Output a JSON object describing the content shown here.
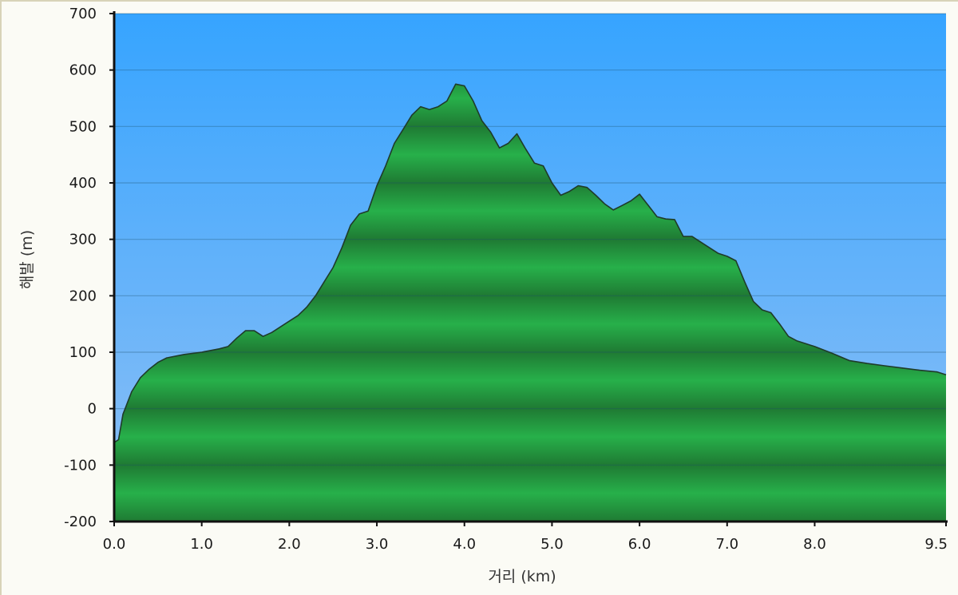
{
  "chart_data": {
    "type": "area",
    "title": "",
    "xlabel": "거리 (km)",
    "ylabel": "해발 (m)",
    "xlim": [
      0,
      9.5
    ],
    "ylim": [
      -200,
      700
    ],
    "grid": true,
    "x_ticks": [
      "0.0",
      "1.0",
      "2.0",
      "3.0",
      "4.0",
      "5.0",
      "6.0",
      "7.0",
      "8.0",
      "9.5"
    ],
    "x_tick_values": [
      0,
      1,
      2,
      3,
      4,
      5,
      6,
      7,
      8,
      9.5
    ],
    "y_ticks": [
      "700",
      "600",
      "500",
      "400",
      "300",
      "200",
      "100",
      "0",
      "-100",
      "-200"
    ],
    "y_tick_values": [
      700,
      600,
      500,
      400,
      300,
      200,
      100,
      0,
      -100,
      -200
    ],
    "colors": {
      "sky_top": "#36a4ff",
      "sky_bottom": "#8fc0f5",
      "terrain_dark": "#1f7a33",
      "terrain_light": "#27b04a",
      "outline": "#1f3b2a"
    },
    "series": [
      {
        "x": [
          0.0,
          0.05,
          0.1,
          0.15,
          0.2,
          0.3,
          0.4,
          0.5,
          0.6,
          0.8,
          1.0,
          1.2,
          1.3,
          1.4,
          1.5,
          1.6,
          1.7,
          1.8,
          1.9,
          2.0,
          2.1,
          2.2,
          2.3,
          2.4,
          2.5,
          2.6,
          2.7,
          2.8,
          2.9,
          3.0,
          3.1,
          3.2,
          3.3,
          3.4,
          3.5,
          3.6,
          3.7,
          3.8,
          3.9,
          4.0,
          4.1,
          4.2,
          4.3,
          4.4,
          4.5,
          4.6,
          4.7,
          4.8,
          4.9,
          5.0,
          5.1,
          5.2,
          5.3,
          5.4,
          5.5,
          5.6,
          5.7,
          5.8,
          5.9,
          6.0,
          6.1,
          6.2,
          6.3,
          6.4,
          6.5,
          6.6,
          6.7,
          6.8,
          6.9,
          7.0,
          7.1,
          7.2,
          7.3,
          7.4,
          7.5,
          7.6,
          7.7,
          7.8,
          7.9,
          8.0,
          8.2,
          8.4,
          8.6,
          8.8,
          9.0,
          9.2,
          9.4,
          9.5
        ],
        "values": [
          -60,
          -55,
          -10,
          10,
          30,
          55,
          70,
          82,
          90,
          96,
          100,
          106,
          110,
          125,
          138,
          138,
          128,
          135,
          145,
          155,
          165,
          180,
          200,
          225,
          250,
          285,
          325,
          345,
          350,
          395,
          430,
          470,
          495,
          520,
          535,
          530,
          535,
          545,
          575,
          572,
          545,
          510,
          490,
          462,
          470,
          487,
          460,
          435,
          430,
          400,
          378,
          385,
          395,
          392,
          378,
          363,
          352,
          360,
          368,
          380,
          360,
          340,
          336,
          335,
          305,
          305,
          295,
          285,
          275,
          270,
          262,
          225,
          190,
          175,
          170,
          150,
          128,
          120,
          115,
          110,
          98,
          85,
          80,
          76,
          72,
          68,
          65,
          60
        ]
      }
    ]
  }
}
